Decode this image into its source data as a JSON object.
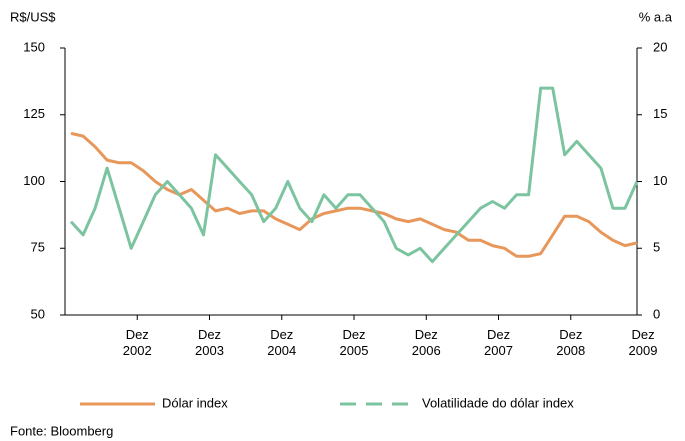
{
  "chart_data": {
    "type": "line",
    "y_label": "R$/US$",
    "y2_label": "% a.a",
    "source": "Fonte: Bloomberg",
    "x": [
      "2002-01",
      "2002-03",
      "2002-05",
      "2002-07",
      "2002-09",
      "2002-11",
      "2003-01",
      "2003-03",
      "2003-05",
      "2003-07",
      "2003-09",
      "2003-11",
      "2004-01",
      "2004-03",
      "2004-05",
      "2004-07",
      "2004-09",
      "2004-11",
      "2005-01",
      "2005-03",
      "2005-05",
      "2005-07",
      "2005-09",
      "2005-11",
      "2006-01",
      "2006-03",
      "2006-05",
      "2006-07",
      "2006-09",
      "2006-11",
      "2007-01",
      "2007-03",
      "2007-05",
      "2007-07",
      "2007-09",
      "2007-11",
      "2008-01",
      "2008-03",
      "2008-05",
      "2008-07",
      "2008-09",
      "2008-11",
      "2009-01",
      "2009-03",
      "2009-05",
      "2009-07",
      "2009-09",
      "2009-11"
    ],
    "xlim": [
      "2001-12",
      "2009-11"
    ],
    "xticks": [
      {
        "value": "2002-12",
        "label": "Dez 2002"
      },
      {
        "value": "2003-12",
        "label": "Dez 2003"
      },
      {
        "value": "2004-12",
        "label": "Dez 2004"
      },
      {
        "value": "2005-12",
        "label": "Dez 2005"
      },
      {
        "value": "2006-12",
        "label": "Dez 2006"
      },
      {
        "value": "2007-12",
        "label": "Dez 2007"
      },
      {
        "value": "2008-12",
        "label": "Dez 2008"
      },
      {
        "value": "2009-12",
        "label": "Dez 2009"
      }
    ],
    "ylim": [
      50,
      150
    ],
    "yticks": [
      50,
      75,
      100,
      125,
      150
    ],
    "y2lim": [
      0,
      20
    ],
    "y2ticks": [
      0,
      5,
      10,
      15,
      20
    ],
    "series": [
      {
        "name": "Dólar index",
        "color": "#e8975a",
        "dashed": false,
        "values": [
          118,
          117,
          113,
          108,
          107,
          107,
          104,
          100,
          97,
          95,
          97,
          93,
          89,
          90,
          88,
          89,
          89,
          86,
          84,
          82,
          86,
          88,
          89,
          90,
          90,
          89,
          88,
          86,
          85,
          86,
          84,
          82,
          81,
          78,
          78,
          76,
          75,
          72,
          72,
          73,
          80,
          87,
          87,
          85,
          81,
          78,
          76,
          77
        ]
      },
      {
        "name": "Volatilidade do dólar index",
        "color": "#7cc4a0",
        "axis": "y2",
        "dashed": true,
        "values": [
          7,
          6,
          8,
          11,
          8,
          5,
          7,
          9,
          10,
          9,
          8,
          6,
          12,
          11,
          10,
          9,
          7,
          8,
          10,
          8,
          7,
          9,
          8,
          9,
          9,
          8,
          7,
          5,
          4.5,
          5,
          4,
          5,
          6,
          7,
          8,
          8.5,
          8,
          9,
          9,
          17,
          17,
          12,
          13,
          12,
          11,
          8,
          8,
          10
        ]
      }
    ]
  }
}
